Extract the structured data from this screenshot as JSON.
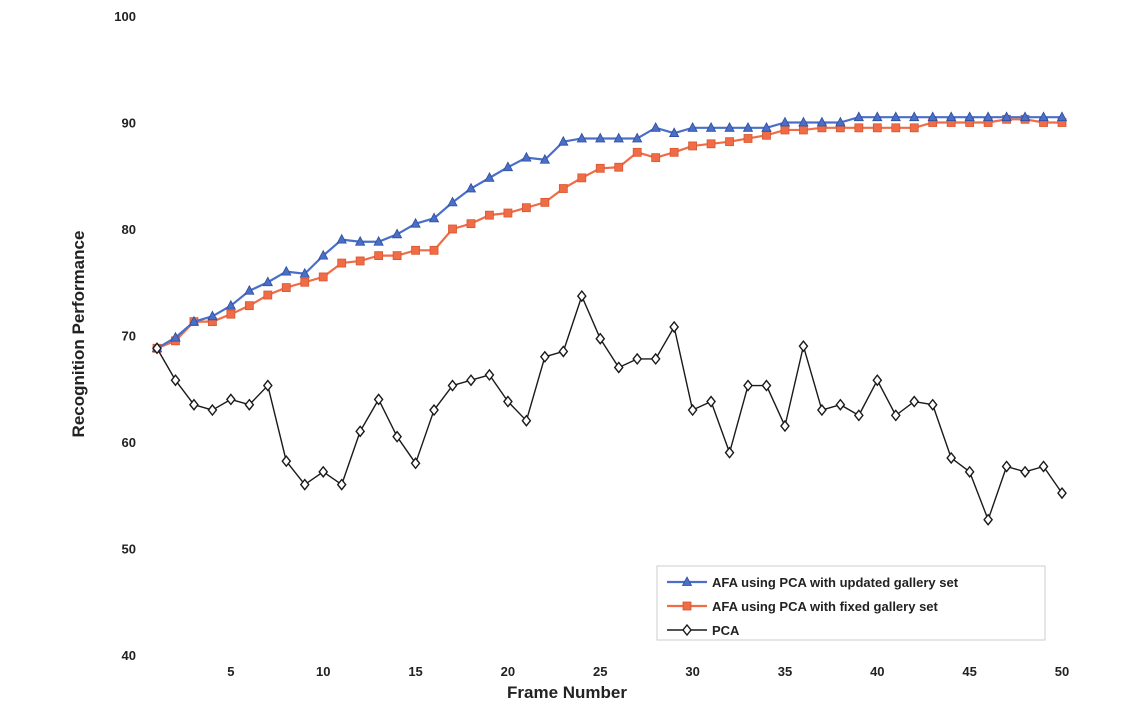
{
  "chart_data": {
    "type": "line",
    "xlabel": "Frame Number",
    "ylabel": "Recognition Performance",
    "xlim": [
      1,
      50
    ],
    "ylim": [
      40,
      100
    ],
    "xticks": [
      5,
      10,
      15,
      20,
      25,
      30,
      35,
      40,
      45,
      50
    ],
    "yticks": [
      40,
      50,
      60,
      70,
      80,
      90,
      100
    ],
    "grid": false,
    "legend_position": "bottom-right",
    "x": [
      1,
      2,
      3,
      4,
      5,
      6,
      7,
      8,
      9,
      10,
      11,
      12,
      13,
      14,
      15,
      16,
      17,
      18,
      19,
      20,
      21,
      22,
      23,
      24,
      25,
      26,
      27,
      28,
      29,
      30,
      31,
      32,
      33,
      34,
      35,
      36,
      37,
      38,
      39,
      40,
      41,
      42,
      43,
      44,
      45,
      46,
      47,
      48,
      49,
      50
    ],
    "series": [
      {
        "name": "AFA using PCA with updated gallery set",
        "color": "#4a6fc9",
        "marker": "triangle",
        "values": [
          68.8,
          69.8,
          71.3,
          71.8,
          72.8,
          74.2,
          75.0,
          76.0,
          75.8,
          77.5,
          79.0,
          78.8,
          78.8,
          79.5,
          80.5,
          81.0,
          82.5,
          83.8,
          84.8,
          85.8,
          86.7,
          86.5,
          88.2,
          88.5,
          88.5,
          88.5,
          88.5,
          89.5,
          89.0,
          89.5,
          89.5,
          89.5,
          89.5,
          89.5,
          90.0,
          90.0,
          90.0,
          90.0,
          90.5,
          90.5,
          90.5,
          90.5,
          90.5,
          90.5,
          90.5,
          90.5,
          90.5,
          90.5,
          90.5,
          90.5
        ]
      },
      {
        "name": "AFA using PCA with fixed gallery set",
        "color": "#ef6c47",
        "marker": "square",
        "values": [
          68.8,
          69.5,
          71.3,
          71.3,
          72.0,
          72.8,
          73.8,
          74.5,
          75.0,
          75.5,
          76.8,
          77.0,
          77.5,
          77.5,
          78.0,
          78.0,
          80.0,
          80.5,
          81.3,
          81.5,
          82.0,
          82.5,
          83.8,
          84.8,
          85.7,
          85.8,
          87.2,
          86.7,
          87.2,
          87.8,
          88.0,
          88.2,
          88.5,
          88.8,
          89.3,
          89.3,
          89.5,
          89.5,
          89.5,
          89.5,
          89.5,
          89.5,
          90.0,
          90.0,
          90.0,
          90.0,
          90.3,
          90.3,
          90.0,
          90.0
        ]
      },
      {
        "name": "PCA",
        "color": "#1a1a1a",
        "marker": "diamond",
        "values": [
          68.8,
          65.8,
          63.5,
          63.0,
          64.0,
          63.5,
          65.3,
          58.2,
          56.0,
          57.2,
          56.0,
          61.0,
          64.0,
          60.5,
          58.0,
          63.0,
          65.3,
          65.8,
          66.3,
          63.8,
          62.0,
          68.0,
          68.5,
          73.7,
          69.7,
          67.0,
          67.8,
          67.8,
          70.8,
          63.0,
          63.8,
          59.0,
          65.3,
          65.3,
          61.5,
          69.0,
          63.0,
          63.5,
          62.5,
          65.8,
          62.5,
          63.8,
          63.5,
          58.5,
          57.2,
          52.7,
          57.7,
          57.2,
          57.7,
          55.2
        ]
      }
    ]
  }
}
